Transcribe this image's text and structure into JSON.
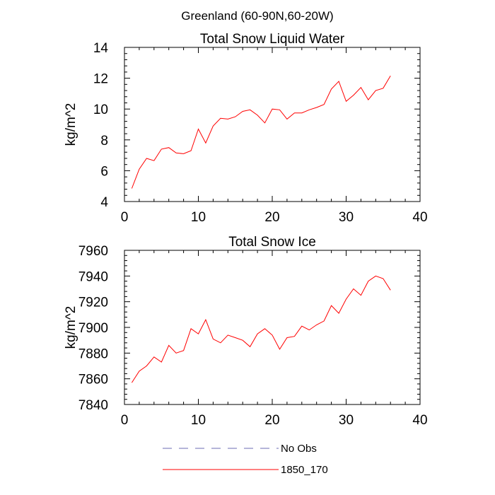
{
  "suptitle": "Greenland (60-90N,60-20W)",
  "legend": {
    "entries": [
      {
        "label": "No Obs",
        "color": "#6b6bb3",
        "dash": "dashed"
      },
      {
        "label": "1850_170",
        "color": "#ff0000",
        "dash": "solid"
      }
    ]
  },
  "chart_data": [
    {
      "type": "line",
      "title": "Total Snow Liquid Water",
      "xlabel": "",
      "ylabel": "kg/m^2",
      "xlim": [
        0,
        40
      ],
      "ylim": [
        4,
        14
      ],
      "xticks": [
        0,
        10,
        20,
        30,
        40
      ],
      "yticks": [
        4,
        6,
        8,
        10,
        12,
        14
      ],
      "series": [
        {
          "name": "1850_170",
          "color": "#ff0000",
          "x": [
            1,
            2,
            3,
            4,
            5,
            6,
            7,
            8,
            9,
            10,
            11,
            12,
            13,
            14,
            15,
            16,
            17,
            18,
            19,
            20,
            21,
            22,
            23,
            24,
            25,
            26,
            27,
            28,
            29,
            30,
            31,
            32,
            33,
            34,
            35,
            36
          ],
          "y": [
            4.85,
            6.1,
            6.8,
            6.65,
            7.4,
            7.5,
            7.15,
            7.1,
            7.3,
            8.7,
            7.8,
            8.9,
            9.4,
            9.35,
            9.5,
            9.85,
            9.95,
            9.6,
            9.1,
            10.0,
            9.95,
            9.35,
            9.75,
            9.75,
            9.95,
            10.1,
            10.3,
            11.3,
            11.8,
            10.5,
            10.9,
            11.4,
            10.6,
            11.2,
            11.35,
            12.15
          ]
        }
      ]
    },
    {
      "type": "line",
      "title": "Total Snow Ice",
      "xlabel": "",
      "ylabel": "kg/m^2",
      "xlim": [
        0,
        40
      ],
      "ylim": [
        7840,
        7960
      ],
      "xticks": [
        0,
        10,
        20,
        30,
        40
      ],
      "yticks": [
        7840,
        7860,
        7880,
        7900,
        7920,
        7940,
        7960
      ],
      "series": [
        {
          "name": "1850_170",
          "color": "#ff0000",
          "x": [
            1,
            2,
            3,
            4,
            5,
            6,
            7,
            8,
            9,
            10,
            11,
            12,
            13,
            14,
            15,
            16,
            17,
            18,
            19,
            20,
            21,
            22,
            23,
            24,
            25,
            26,
            27,
            28,
            29,
            30,
            31,
            32,
            33,
            34,
            35,
            36
          ],
          "y": [
            7857,
            7866,
            7870,
            7877,
            7873,
            7886,
            7880,
            7882,
            7899,
            7895,
            7906,
            7891,
            7888,
            7894,
            7892,
            7890,
            7885,
            7895,
            7899,
            7894,
            7883,
            7892,
            7893,
            7901,
            7898,
            7902,
            7905,
            7917,
            7911,
            7922,
            7930,
            7925,
            7936,
            7940,
            7938,
            7929
          ]
        }
      ]
    }
  ]
}
